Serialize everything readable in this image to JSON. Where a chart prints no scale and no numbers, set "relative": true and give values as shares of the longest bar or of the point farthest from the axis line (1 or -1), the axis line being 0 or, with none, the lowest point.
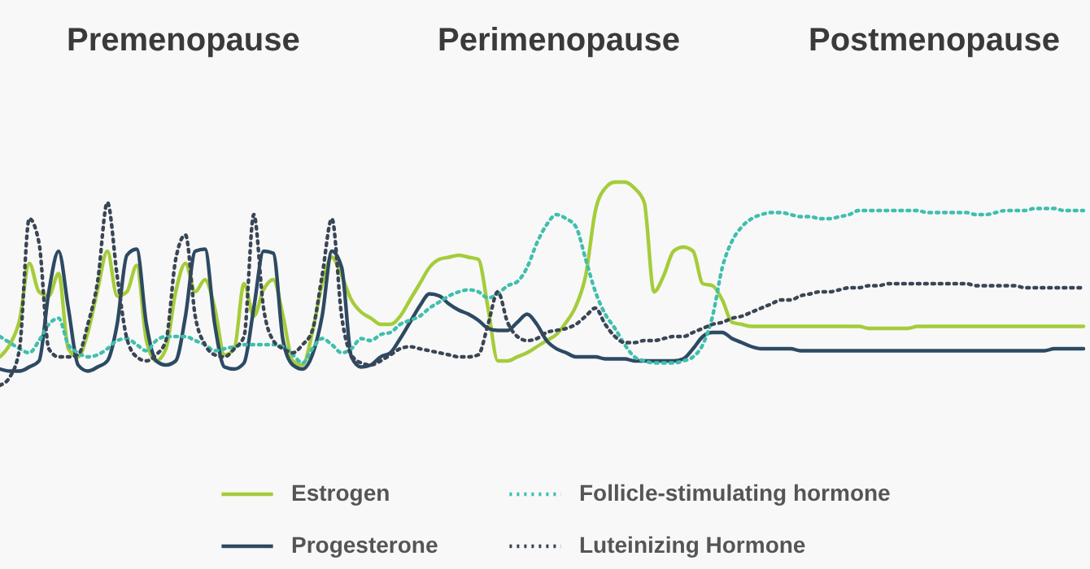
{
  "chart_data": {
    "type": "line",
    "relative": true,
    "legend": "bottom",
    "annotations": [
      "Premenopause",
      "Perimenopause",
      "Postmenopause"
    ],
    "categories": [
      null,
      null,
      null,
      null,
      null,
      null,
      null,
      null,
      null,
      null,
      null,
      null,
      null,
      null,
      null,
      null,
      null,
      null,
      null,
      null,
      null,
      null,
      null,
      null,
      null,
      null,
      null,
      null,
      null,
      null,
      null,
      null,
      null,
      null,
      null,
      null,
      null,
      null,
      null,
      null,
      null,
      null,
      null,
      null,
      null,
      null,
      null,
      null,
      null,
      null,
      null,
      null,
      null,
      null,
      null,
      null,
      null,
      null,
      null,
      null,
      null,
      null,
      null,
      null,
      null,
      null,
      null,
      null,
      null,
      null,
      null,
      null,
      null,
      null,
      null,
      null,
      null,
      null,
      null,
      null,
      null,
      null,
      null,
      null,
      null,
      null,
      null,
      null,
      null,
      null,
      null,
      null,
      null,
      null,
      null,
      null,
      null,
      null,
      null,
      null,
      null,
      null,
      null,
      null,
      null,
      null,
      null,
      null,
      null,
      null,
      null,
      null
    ],
    "series": [
      {
        "name": "Estrogen",
        "color": "#a5cc3a",
        "line_style": "solid",
        "values": [
          0.14,
          0.2,
          0.32,
          0.6,
          0.46,
          0.44,
          0.55,
          0.18,
          0.14,
          0.26,
          0.47,
          0.66,
          0.44,
          0.46,
          0.59,
          0.22,
          0.12,
          0.18,
          0.46,
          0.6,
          0.46,
          0.52,
          0.38,
          0.15,
          0.18,
          0.5,
          0.34,
          0.47,
          0.52,
          0.34,
          0.12,
          0.1,
          0.26,
          0.5,
          0.63,
          0.54,
          0.42,
          0.36,
          0.33,
          0.3,
          0.3,
          0.34,
          0.42,
          0.5,
          0.58,
          0.62,
          0.63,
          0.64,
          0.63,
          0.62,
          0.38,
          0.12,
          0.12,
          0.14,
          0.16,
          0.19,
          0.22,
          0.25,
          0.31,
          0.39,
          0.54,
          0.86,
          0.97,
          1,
          1,
          0.97,
          0.9,
          0.46,
          0.54,
          0.66,
          0.68,
          0.66,
          0.5,
          0.49,
          0.42,
          0.31,
          0.3,
          0.29,
          0.29,
          0.29,
          0.29,
          0.29,
          0.29,
          0.29,
          0.29,
          0.29,
          0.29,
          0.29,
          0.29,
          0.28,
          0.28,
          0.28,
          0.28,
          0.28,
          0.29,
          0.29,
          0.29,
          0.29,
          0.29,
          0.29,
          0.29,
          0.29,
          0.29,
          0.29,
          0.29,
          0.29,
          0.29,
          0.29,
          0.29,
          0.29,
          0.29,
          0.29
        ]
      },
      {
        "name": "Progesterone",
        "color": "#2d4a63",
        "line_style": "solid",
        "values": [
          0.08,
          0.07,
          0.07,
          0.09,
          0.12,
          0.46,
          0.66,
          0.38,
          0.1,
          0.07,
          0.09,
          0.12,
          0.3,
          0.64,
          0.67,
          0.3,
          0.12,
          0.1,
          0.12,
          0.34,
          0.66,
          0.67,
          0.3,
          0.09,
          0.08,
          0.11,
          0.38,
          0.66,
          0.65,
          0.22,
          0.1,
          0.08,
          0.15,
          0.34,
          0.66,
          0.58,
          0.14,
          0.09,
          0.1,
          0.14,
          0.16,
          0.23,
          0.31,
          0.39,
          0.45,
          0.44,
          0.4,
          0.37,
          0.35,
          0.32,
          0.28,
          0.27,
          0.27,
          0.31,
          0.35,
          0.3,
          0.22,
          0.18,
          0.16,
          0.14,
          0.14,
          0.14,
          0.13,
          0.13,
          0.13,
          0.12,
          0.12,
          0.12,
          0.12,
          0.12,
          0.13,
          0.18,
          0.24,
          0.26,
          0.26,
          0.23,
          0.21,
          0.19,
          0.18,
          0.18,
          0.18,
          0.18,
          0.17,
          0.17,
          0.17,
          0.17,
          0.17,
          0.17,
          0.17,
          0.17,
          0.17,
          0.17,
          0.17,
          0.17,
          0.17,
          0.17,
          0.17,
          0.17,
          0.17,
          0.17,
          0.17,
          0.17,
          0.17,
          0.17,
          0.17,
          0.17,
          0.17,
          0.17,
          0.18,
          0.18,
          0.18,
          0.18
        ]
      },
      {
        "name": "Follicle-stimulating hormone",
        "color": "#3fbfad",
        "line_style": "dotted",
        "values": [
          0.24,
          0.21,
          0.18,
          0.16,
          0.22,
          0.3,
          0.33,
          0.2,
          0.16,
          0.14,
          0.15,
          0.18,
          0.22,
          0.23,
          0.2,
          0.17,
          0.22,
          0.24,
          0.24,
          0.24,
          0.22,
          0.2,
          0.17,
          0.18,
          0.19,
          0.2,
          0.2,
          0.2,
          0.2,
          0.19,
          0.15,
          0.11,
          0.18,
          0.23,
          0.2,
          0.16,
          0.18,
          0.23,
          0.22,
          0.25,
          0.26,
          0.3,
          0.32,
          0.34,
          0.38,
          0.41,
          0.44,
          0.46,
          0.47,
          0.46,
          0.43,
          0.45,
          0.49,
          0.51,
          0.58,
          0.7,
          0.79,
          0.84,
          0.82,
          0.78,
          0.62,
          0.46,
          0.35,
          0.28,
          0.2,
          0.14,
          0.12,
          0.11,
          0.11,
          0.11,
          0.12,
          0.14,
          0.2,
          0.34,
          0.58,
          0.71,
          0.78,
          0.82,
          0.84,
          0.85,
          0.85,
          0.84,
          0.83,
          0.83,
          0.82,
          0.82,
          0.83,
          0.84,
          0.86,
          0.86,
          0.86,
          0.86,
          0.86,
          0.86,
          0.86,
          0.85,
          0.85,
          0.85,
          0.85,
          0.85,
          0.84,
          0.84,
          0.85,
          0.86,
          0.86,
          0.86,
          0.87,
          0.87,
          0.87,
          0.86,
          0.86,
          0.86
        ]
      },
      {
        "name": "Luteinizing Hormone",
        "color": "#3a4555",
        "line_style": "dotted",
        "values": [
          0,
          0.04,
          0.18,
          0.82,
          0.7,
          0.18,
          0.14,
          0.14,
          0.15,
          0.3,
          0.51,
          0.9,
          0.54,
          0.23,
          0.14,
          0.12,
          0.15,
          0.22,
          0.62,
          0.74,
          0.34,
          0.2,
          0.15,
          0.14,
          0.18,
          0.24,
          0.84,
          0.38,
          0.22,
          0.18,
          0.16,
          0.2,
          0.27,
          0.54,
          0.82,
          0.34,
          0.15,
          0.11,
          0.1,
          0.12,
          0.15,
          0.18,
          0.19,
          0.18,
          0.17,
          0.16,
          0.15,
          0.14,
          0.14,
          0.15,
          0.3,
          0.46,
          0.31,
          0.24,
          0.22,
          0.23,
          0.26,
          0.27,
          0.28,
          0.3,
          0.34,
          0.38,
          0.3,
          0.24,
          0.21,
          0.21,
          0.22,
          0.22,
          0.23,
          0.24,
          0.24,
          0.26,
          0.28,
          0.3,
          0.31,
          0.33,
          0.34,
          0.36,
          0.38,
          0.4,
          0.42,
          0.42,
          0.44,
          0.45,
          0.46,
          0.46,
          0.47,
          0.48,
          0.48,
          0.49,
          0.49,
          0.5,
          0.5,
          0.5,
          0.5,
          0.5,
          0.5,
          0.5,
          0.5,
          0.5,
          0.49,
          0.49,
          0.49,
          0.49,
          0.49,
          0.48,
          0.48,
          0.48,
          0.48,
          0.48,
          0.48,
          0.48
        ]
      }
    ]
  }
}
